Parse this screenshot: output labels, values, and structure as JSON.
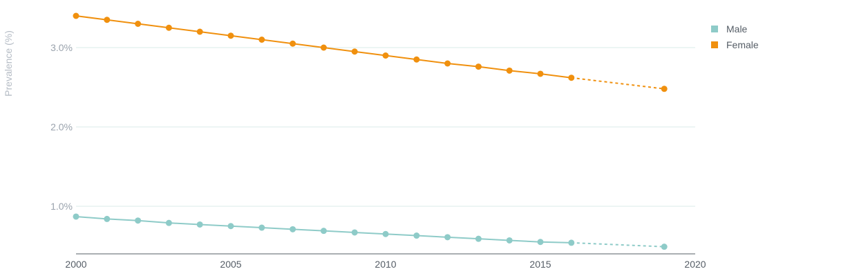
{
  "chart_data": {
    "type": "line",
    "title": "",
    "xlabel": "",
    "ylabel": "Prevalence (%)",
    "xlim": [
      2000,
      2020
    ],
    "ylim": [
      0.4,
      3.6
    ],
    "x_ticks": [
      "2000",
      "2005",
      "2010",
      "2015",
      "2020"
    ],
    "y_ticks": [
      "1.0%",
      "2.0%",
      "3.0%"
    ],
    "grid": true,
    "legend_position": "top-right",
    "series": [
      {
        "name": "Male",
        "color": "#8ecbc8",
        "x": [
          2000,
          2001,
          2002,
          2003,
          2004,
          2005,
          2006,
          2007,
          2008,
          2009,
          2010,
          2011,
          2012,
          2013,
          2014,
          2015,
          2016,
          2019
        ],
        "values": [
          0.87,
          0.84,
          0.82,
          0.79,
          0.77,
          0.75,
          0.73,
          0.71,
          0.69,
          0.67,
          0.65,
          0.63,
          0.61,
          0.59,
          0.57,
          0.55,
          0.54,
          0.49
        ],
        "projected_from_index": 16
      },
      {
        "name": "Female",
        "color": "#f0900e",
        "x": [
          2000,
          2001,
          2002,
          2003,
          2004,
          2005,
          2006,
          2007,
          2008,
          2009,
          2010,
          2011,
          2012,
          2013,
          2014,
          2015,
          2016,
          2019
        ],
        "values": [
          3.4,
          3.35,
          3.3,
          3.25,
          3.2,
          3.15,
          3.1,
          3.05,
          3.0,
          2.95,
          2.9,
          2.85,
          2.8,
          2.76,
          2.71,
          2.67,
          2.62,
          2.48
        ],
        "projected_from_index": 16
      }
    ]
  }
}
